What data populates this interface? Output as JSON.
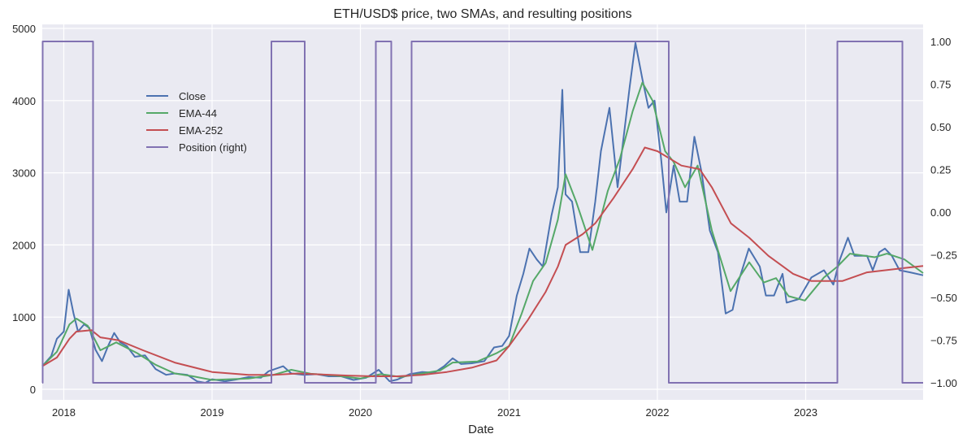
{
  "chart_data": {
    "type": "line",
    "title": "ETH/USD$ price, two SMAs, and resulting positions",
    "xlabel": "Date",
    "ylabel": "",
    "y2label": "",
    "xlim": [
      "2017-11-09",
      "2023-10-17"
    ],
    "ylim": [
      -150,
      5050
    ],
    "y2lim": [
      -1.1,
      1.1
    ],
    "x_ticks": [
      "2018",
      "2019",
      "2020",
      "2021",
      "2022",
      "2023"
    ],
    "y_ticks": [
      0,
      1000,
      2000,
      3000,
      4000,
      5000
    ],
    "y2_ticks": [
      "-1.00",
      "-0.75",
      "-0.50",
      "-0.25",
      "0.00",
      "0.25",
      "0.50",
      "0.75",
      "1.00"
    ],
    "grid": true,
    "background": "#eaeaf2",
    "legend": {
      "placement": "upper-left",
      "entries": [
        "Close",
        "EMA-44",
        "EMA-252",
        "Position (right)"
      ]
    },
    "series": [
      {
        "name": "Close",
        "color": "#4c72b0",
        "axis": "left",
        "points": [
          [
            "2017-11-09",
            320
          ],
          [
            "2017-12-01",
            460
          ],
          [
            "2017-12-15",
            700
          ],
          [
            "2018-01-01",
            800
          ],
          [
            "2018-01-13",
            1380
          ],
          [
            "2018-01-25",
            1050
          ],
          [
            "2018-02-05",
            800
          ],
          [
            "2018-02-20",
            900
          ],
          [
            "2018-03-05",
            850
          ],
          [
            "2018-03-20",
            550
          ],
          [
            "2018-04-05",
            390
          ],
          [
            "2018-04-20",
            600
          ],
          [
            "2018-05-05",
            780
          ],
          [
            "2018-05-20",
            650
          ],
          [
            "2018-06-05",
            600
          ],
          [
            "2018-06-25",
            450
          ],
          [
            "2018-07-20",
            470
          ],
          [
            "2018-08-15",
            280
          ],
          [
            "2018-09-10",
            200
          ],
          [
            "2018-10-01",
            220
          ],
          [
            "2018-11-01",
            200
          ],
          [
            "2018-11-25",
            110
          ],
          [
            "2018-12-15",
            90
          ],
          [
            "2019-01-01",
            140
          ],
          [
            "2019-02-01",
            110
          ],
          [
            "2019-03-01",
            135
          ],
          [
            "2019-04-01",
            170
          ],
          [
            "2019-05-01",
            160
          ],
          [
            "2019-05-20",
            250
          ],
          [
            "2019-06-25",
            320
          ],
          [
            "2019-07-15",
            220
          ],
          [
            "2019-08-15",
            200
          ],
          [
            "2019-09-15",
            210
          ],
          [
            "2019-10-15",
            180
          ],
          [
            "2019-11-15",
            180
          ],
          [
            "2019-12-15",
            130
          ],
          [
            "2020-01-15",
            160
          ],
          [
            "2020-02-15",
            270
          ],
          [
            "2020-03-13",
            110
          ],
          [
            "2020-04-01",
            135
          ],
          [
            "2020-05-01",
            210
          ],
          [
            "2020-06-01",
            240
          ],
          [
            "2020-07-01",
            230
          ],
          [
            "2020-07-25",
            320
          ],
          [
            "2020-08-15",
            430
          ],
          [
            "2020-09-05",
            350
          ],
          [
            "2020-10-01",
            360
          ],
          [
            "2020-11-01",
            390
          ],
          [
            "2020-11-25",
            580
          ],
          [
            "2020-12-15",
            600
          ],
          [
            "2021-01-01",
            740
          ],
          [
            "2021-01-20",
            1300
          ],
          [
            "2021-02-05",
            1600
          ],
          [
            "2021-02-20",
            1950
          ],
          [
            "2021-03-10",
            1800
          ],
          [
            "2021-03-25",
            1700
          ],
          [
            "2021-04-15",
            2400
          ],
          [
            "2021-05-01",
            2800
          ],
          [
            "2021-05-12",
            4150
          ],
          [
            "2021-05-20",
            2700
          ],
          [
            "2021-06-05",
            2600
          ],
          [
            "2021-06-25",
            1900
          ],
          [
            "2021-07-15",
            1900
          ],
          [
            "2021-08-01",
            2600
          ],
          [
            "2021-08-15",
            3300
          ],
          [
            "2021-09-05",
            3900
          ],
          [
            "2021-09-25",
            2800
          ],
          [
            "2021-10-10",
            3500
          ],
          [
            "2021-10-25",
            4200
          ],
          [
            "2021-11-08",
            4800
          ],
          [
            "2021-11-25",
            4300
          ],
          [
            "2021-12-10",
            3900
          ],
          [
            "2021-12-25",
            4000
          ],
          [
            "2022-01-10",
            3200
          ],
          [
            "2022-01-23",
            2450
          ],
          [
            "2022-02-10",
            3100
          ],
          [
            "2022-02-25",
            2600
          ],
          [
            "2022-03-15",
            2600
          ],
          [
            "2022-04-02",
            3500
          ],
          [
            "2022-04-20",
            3000
          ],
          [
            "2022-05-10",
            2200
          ],
          [
            "2022-05-30",
            1900
          ],
          [
            "2022-06-18",
            1050
          ],
          [
            "2022-07-05",
            1100
          ],
          [
            "2022-07-20",
            1500
          ],
          [
            "2022-08-14",
            1950
          ],
          [
            "2022-09-10",
            1700
          ],
          [
            "2022-09-25",
            1300
          ],
          [
            "2022-10-15",
            1300
          ],
          [
            "2022-11-05",
            1600
          ],
          [
            "2022-11-15",
            1200
          ],
          [
            "2022-12-15",
            1250
          ],
          [
            "2023-01-15",
            1550
          ],
          [
            "2023-02-15",
            1650
          ],
          [
            "2023-03-10",
            1450
          ],
          [
            "2023-03-25",
            1780
          ],
          [
            "2023-04-15",
            2100
          ],
          [
            "2023-05-01",
            1850
          ],
          [
            "2023-06-01",
            1850
          ],
          [
            "2023-06-15",
            1650
          ],
          [
            "2023-07-01",
            1900
          ],
          [
            "2023-07-15",
            1950
          ],
          [
            "2023-08-01",
            1850
          ],
          [
            "2023-08-20",
            1650
          ],
          [
            "2023-09-15",
            1620
          ],
          [
            "2023-10-17",
            1580
          ]
        ]
      },
      {
        "name": "EMA-44",
        "color": "#55a868",
        "axis": "left",
        "points": [
          [
            "2017-11-09",
            320
          ],
          [
            "2017-12-15",
            520
          ],
          [
            "2018-01-15",
            900
          ],
          [
            "2018-02-01",
            980
          ],
          [
            "2018-03-01",
            880
          ],
          [
            "2018-04-01",
            540
          ],
          [
            "2018-05-10",
            650
          ],
          [
            "2018-07-01",
            500
          ],
          [
            "2018-08-15",
            340
          ],
          [
            "2018-10-01",
            220
          ],
          [
            "2018-11-15",
            180
          ],
          [
            "2019-01-01",
            130
          ],
          [
            "2019-04-01",
            150
          ],
          [
            "2019-06-01",
            200
          ],
          [
            "2019-07-15",
            270
          ],
          [
            "2019-09-01",
            215
          ],
          [
            "2019-11-01",
            190
          ],
          [
            "2020-01-01",
            150
          ],
          [
            "2020-02-20",
            210
          ],
          [
            "2020-04-10",
            170
          ],
          [
            "2020-06-01",
            220
          ],
          [
            "2020-07-15",
            260
          ],
          [
            "2020-08-15",
            370
          ],
          [
            "2020-10-15",
            385
          ],
          [
            "2020-12-01",
            500
          ],
          [
            "2021-01-01",
            600
          ],
          [
            "2021-02-01",
            1050
          ],
          [
            "2021-03-01",
            1500
          ],
          [
            "2021-04-01",
            1750
          ],
          [
            "2021-05-01",
            2350
          ],
          [
            "2021-05-20",
            2980
          ],
          [
            "2021-06-15",
            2600
          ],
          [
            "2021-07-25",
            1930
          ],
          [
            "2021-09-01",
            2750
          ],
          [
            "2021-10-01",
            3200
          ],
          [
            "2021-11-01",
            3850
          ],
          [
            "2021-11-25",
            4250
          ],
          [
            "2021-12-20",
            4000
          ],
          [
            "2022-01-20",
            3300
          ],
          [
            "2022-02-10",
            3150
          ],
          [
            "2022-03-10",
            2800
          ],
          [
            "2022-04-10",
            3100
          ],
          [
            "2022-05-15",
            2200
          ],
          [
            "2022-06-30",
            1360
          ],
          [
            "2022-08-15",
            1760
          ],
          [
            "2022-09-20",
            1480
          ],
          [
            "2022-10-20",
            1540
          ],
          [
            "2022-11-20",
            1290
          ],
          [
            "2022-12-30",
            1230
          ],
          [
            "2023-02-15",
            1550
          ],
          [
            "2023-03-20",
            1700
          ],
          [
            "2023-04-20",
            1880
          ],
          [
            "2023-06-20",
            1830
          ],
          [
            "2023-07-20",
            1880
          ],
          [
            "2023-09-01",
            1800
          ],
          [
            "2023-10-17",
            1610
          ]
        ]
      },
      {
        "name": "EMA-252",
        "color": "#c44e52",
        "axis": "left",
        "points": [
          [
            "2017-11-09",
            320
          ],
          [
            "2017-12-15",
            440
          ],
          [
            "2018-01-15",
            700
          ],
          [
            "2018-02-01",
            800
          ],
          [
            "2018-03-10",
            820
          ],
          [
            "2018-04-01",
            720
          ],
          [
            "2018-05-15",
            680
          ],
          [
            "2018-07-15",
            540
          ],
          [
            "2018-10-01",
            370
          ],
          [
            "2019-01-01",
            240
          ],
          [
            "2019-04-01",
            200
          ],
          [
            "2019-06-01",
            200
          ],
          [
            "2019-08-01",
            220
          ],
          [
            "2019-12-01",
            190
          ],
          [
            "2020-02-01",
            180
          ],
          [
            "2020-04-01",
            180
          ],
          [
            "2020-06-01",
            200
          ],
          [
            "2020-08-01",
            240
          ],
          [
            "2020-10-01",
            300
          ],
          [
            "2020-12-01",
            400
          ],
          [
            "2021-01-01",
            600
          ],
          [
            "2021-02-15",
            950
          ],
          [
            "2021-04-01",
            1350
          ],
          [
            "2021-05-01",
            1700
          ],
          [
            "2021-05-20",
            2000
          ],
          [
            "2021-07-01",
            2150
          ],
          [
            "2021-08-01",
            2300
          ],
          [
            "2021-09-15",
            2650
          ],
          [
            "2021-11-01",
            3050
          ],
          [
            "2021-12-01",
            3350
          ],
          [
            "2022-01-01",
            3300
          ],
          [
            "2022-03-01",
            3100
          ],
          [
            "2022-04-15",
            3050
          ],
          [
            "2022-05-15",
            2800
          ],
          [
            "2022-07-01",
            2300
          ],
          [
            "2022-08-15",
            2100
          ],
          [
            "2022-10-01",
            1850
          ],
          [
            "2022-12-01",
            1600
          ],
          [
            "2023-01-15",
            1500
          ],
          [
            "2023-04-01",
            1500
          ],
          [
            "2023-06-01",
            1620
          ],
          [
            "2023-09-01",
            1680
          ],
          [
            "2023-10-17",
            1710
          ]
        ]
      },
      {
        "name": "Position (right)",
        "color": "#8172b2",
        "axis": "right",
        "step": true,
        "points": [
          [
            "2017-11-09",
            -1
          ],
          [
            "2017-11-10",
            1
          ],
          [
            "2018-03-14",
            -1
          ],
          [
            "2019-05-27",
            1
          ],
          [
            "2019-08-17",
            -1
          ],
          [
            "2020-02-08",
            1
          ],
          [
            "2020-03-17",
            -1
          ],
          [
            "2020-05-06",
            1
          ],
          [
            "2022-01-29",
            -1
          ],
          [
            "2023-03-20",
            1
          ],
          [
            "2023-08-27",
            -1
          ],
          [
            "2023-10-17",
            -1
          ]
        ]
      }
    ]
  }
}
